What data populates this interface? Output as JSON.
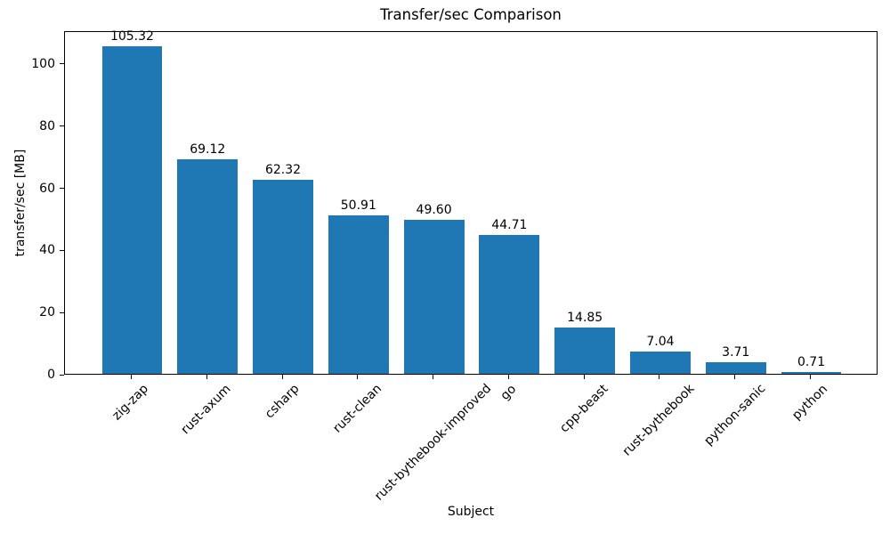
{
  "chart_data": {
    "type": "bar",
    "title": "Transfer/sec Comparison",
    "xlabel": "Subject",
    "ylabel": "transfer/sec [MB]",
    "categories": [
      "zig-zap",
      "rust-axum",
      "csharp",
      "rust-clean",
      "rust-bythebook-improved",
      "go",
      "cpp-beast",
      "rust-bythebook",
      "python-sanic",
      "python"
    ],
    "values": [
      105.32,
      69.12,
      62.32,
      50.91,
      49.6,
      44.71,
      14.85,
      7.04,
      3.71,
      0.71
    ],
    "value_labels": [
      "105.32",
      "69.12",
      "62.32",
      "50.91",
      "49.60",
      "44.71",
      "14.85",
      "7.04",
      "3.71",
      "0.71"
    ],
    "ytick_labels": [
      "0",
      "20",
      "40",
      "60",
      "80",
      "100"
    ],
    "yticks": [
      0,
      20,
      40,
      60,
      80,
      100
    ],
    "ylim": [
      0,
      110.59
    ],
    "bar_color": "#1f77b4",
    "axis_color": "#000000",
    "grid": false,
    "legend_position": "none",
    "x_tick_rotation_deg": 45
  }
}
